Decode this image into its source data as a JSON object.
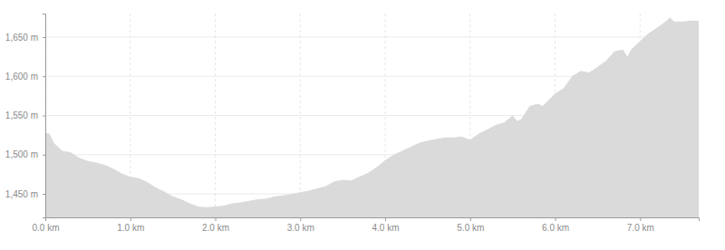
{
  "chart_data": {
    "type": "area",
    "color": "#dadada",
    "grid": true,
    "x": [
      0,
      0.05,
      0.1,
      0.2,
      0.3,
      0.4,
      0.5,
      0.6,
      0.7,
      0.8,
      0.9,
      1.0,
      1.1,
      1.2,
      1.3,
      1.4,
      1.5,
      1.6,
      1.7,
      1.8,
      1.9,
      2.0,
      2.1,
      2.2,
      2.3,
      2.4,
      2.5,
      2.6,
      2.7,
      2.8,
      2.9,
      3.0,
      3.1,
      3.2,
      3.3,
      3.4,
      3.5,
      3.6,
      3.7,
      3.8,
      3.9,
      4.0,
      4.1,
      4.2,
      4.3,
      4.4,
      4.5,
      4.6,
      4.7,
      4.8,
      4.9,
      5.0,
      5.1,
      5.2,
      5.3,
      5.4,
      5.5,
      5.55,
      5.6,
      5.7,
      5.8,
      5.85,
      5.9,
      6.0,
      6.1,
      6.2,
      6.3,
      6.4,
      6.5,
      6.6,
      6.7,
      6.8,
      6.85,
      6.9,
      7.0,
      7.1,
      7.2,
      7.3,
      7.35,
      7.4,
      7.5,
      7.6,
      7.69
    ],
    "values": [
      1528,
      1527,
      1515,
      1505,
      1503,
      1496,
      1492,
      1490,
      1487,
      1482,
      1476,
      1472,
      1470,
      1465,
      1458,
      1453,
      1447,
      1443,
      1438,
      1434,
      1433,
      1434,
      1435,
      1438,
      1439,
      1441,
      1443,
      1444,
      1447,
      1448,
      1450,
      1452,
      1454,
      1457,
      1460,
      1466,
      1468,
      1467,
      1472,
      1477,
      1484,
      1493,
      1500,
      1505,
      1510,
      1515,
      1518,
      1520,
      1522,
      1522,
      1523,
      1519,
      1527,
      1532,
      1538,
      1541,
      1550,
      1543,
      1545,
      1562,
      1565,
      1562,
      1567,
      1578,
      1585,
      1600,
      1607,
      1605,
      1612,
      1620,
      1632,
      1634,
      1625,
      1635,
      1645,
      1655,
      1662,
      1670,
      1675,
      1670,
      1670,
      1671,
      1671
    ],
    "xlim": [
      0,
      7.69
    ],
    "xticks": [
      {
        "value": 0,
        "label": "0.0 km"
      },
      {
        "value": 1,
        "label": "1.0 km"
      },
      {
        "value": 2,
        "label": "2.0 km"
      },
      {
        "value": 3,
        "label": "3.0 km"
      },
      {
        "value": 4,
        "label": "4.0 km"
      },
      {
        "value": 5,
        "label": "5.0 km"
      },
      {
        "value": 6,
        "label": "6.0 km"
      },
      {
        "value": 7,
        "label": "7.0 km"
      }
    ],
    "ylim": [
      1420,
      1680
    ],
    "yticks": [
      {
        "value": 1450,
        "label": "1,450 m"
      },
      {
        "value": 1500,
        "label": "1,500 m"
      },
      {
        "value": 1550,
        "label": "1,550 m"
      },
      {
        "value": 1600,
        "label": "1,600 m"
      },
      {
        "value": 1650,
        "label": "1,650 m"
      }
    ]
  }
}
